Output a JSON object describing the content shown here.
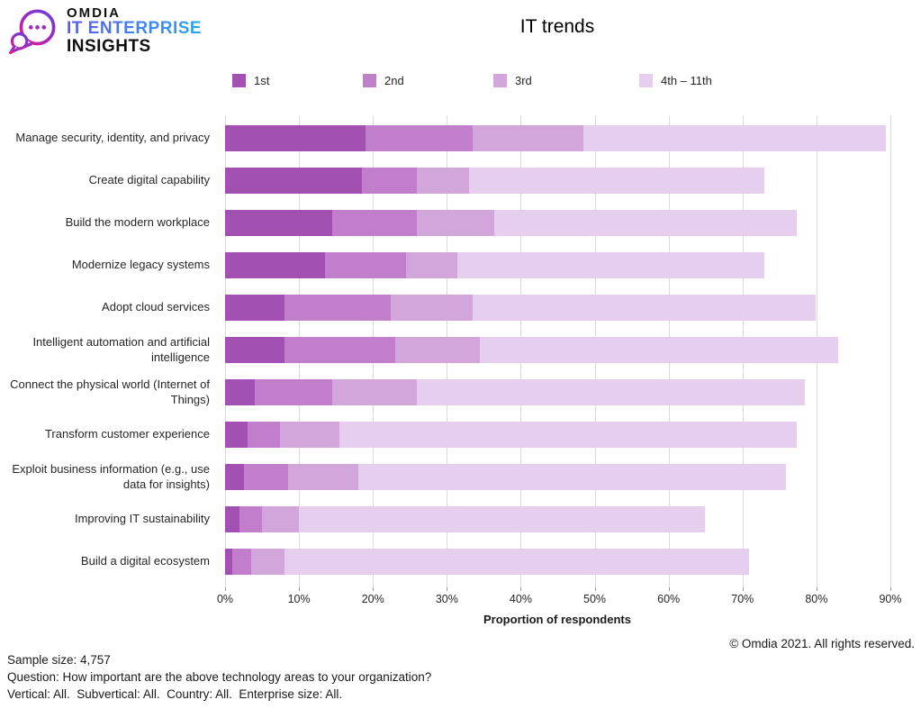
{
  "header": {
    "logo_brand": "OMDIA",
    "logo_line1": "IT ENTERPRISE",
    "logo_line2": "INSIGHTS",
    "title": "IT trends"
  },
  "chart_data": {
    "type": "bar",
    "orientation": "horizontal",
    "stacked": true,
    "title": "IT trends",
    "xlabel": "Proportion of respondents",
    "xlim": [
      0,
      90
    ],
    "x_ticks": [
      "0%",
      "10%",
      "20%",
      "30%",
      "40%",
      "50%",
      "60%",
      "70%",
      "80%",
      "90%"
    ],
    "grid": true,
    "legend_position": "top",
    "categories": [
      "Manage security, identity, and privacy",
      "Create digital capability",
      "Build the modern workplace",
      "Modernize legacy systems",
      "Adopt cloud services",
      "Intelligent automation and artificial intelligence",
      "Connect the physical world (Internet of Things)",
      "Transform customer experience",
      "Exploit business information (e.g., use data for insights)",
      "Improving IT sustainability",
      "Build a digital ecosystem"
    ],
    "series": [
      {
        "name": "1st",
        "color": "#a251b2",
        "values": [
          19,
          18.5,
          14.5,
          13.5,
          8,
          8,
          4,
          3,
          2.5,
          2,
          1
        ]
      },
      {
        "name": "2nd",
        "color": "#c17fcb",
        "values": [
          14.5,
          7.5,
          11.5,
          11,
          14.5,
          15,
          10.5,
          4.5,
          6,
          3,
          2.5
        ]
      },
      {
        "name": "3rd",
        "color": "#d2a5db",
        "values": [
          15,
          7,
          10.5,
          7,
          11,
          11.5,
          11.5,
          8,
          9.5,
          5,
          4.5
        ]
      },
      {
        "name": "4th – 11th",
        "color": "#e6cfee",
        "values": [
          41,
          40,
          41,
          41.5,
          46.5,
          48.5,
          52.5,
          62,
          58,
          55,
          63
        ]
      }
    ]
  },
  "footer": {
    "copyright": "© Omdia 2021. All rights reserved.",
    "sample_size": "Sample size: 4,757",
    "question": "Question: How important are the above technology areas to your organization?",
    "filters": "Vertical: All.  Subvertical: All.  Country: All.  Enterprise size: All."
  }
}
